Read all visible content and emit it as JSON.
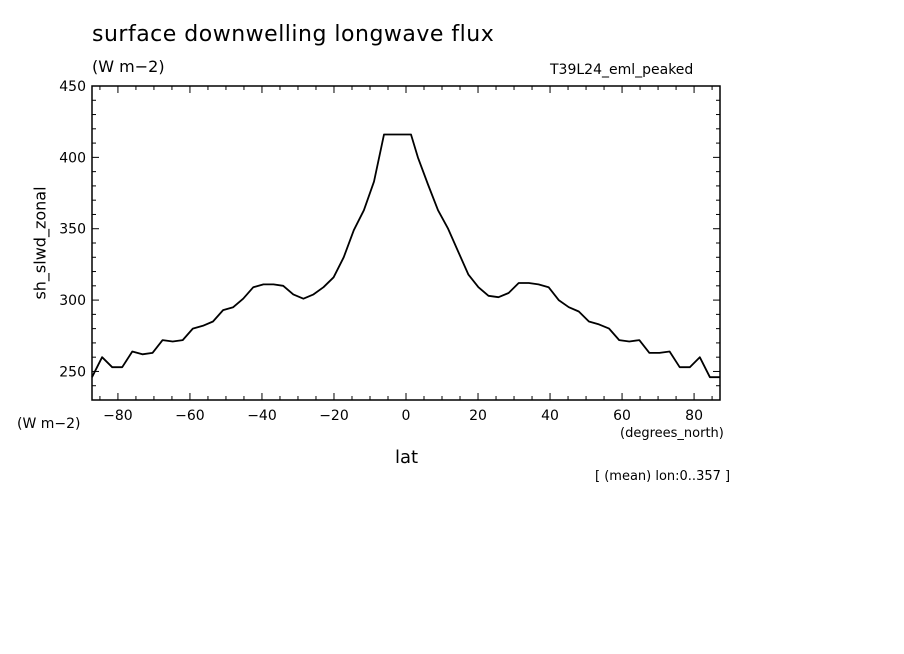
{
  "header": {
    "title": "surface downwelling longwave flux",
    "units": "(W m−2)",
    "run": "T39L24_eml_peaked"
  },
  "axes": {
    "ylabel": "sh_slwd_zonal",
    "yunits": "(W m−2)",
    "xlabel": "lat",
    "xunits": "(degrees_north)"
  },
  "footer": {
    "note": "[ (mean) lon:0..357 ]"
  },
  "chart_data": {
    "type": "line",
    "title": "surface downwelling longwave flux",
    "xlabel": "lat",
    "ylabel": "sh_slwd_zonal",
    "xlim": [
      -87.2,
      87.2
    ],
    "ylim": [
      230,
      450
    ],
    "xticks": [
      -80,
      -60,
      -40,
      -20,
      0,
      20,
      40,
      60,
      80
    ],
    "yticks": [
      250,
      300,
      350,
      400,
      450
    ],
    "grid": false,
    "series": [
      {
        "x": [
          -87.2,
          -84.4,
          -81.6,
          -78.8,
          -76.0,
          -73.2,
          -70.4,
          -67.6,
          -64.8,
          -62.0,
          -59.2,
          -56.4,
          -53.6,
          -50.8,
          -48.0,
          -45.2,
          -42.4,
          -39.6,
          -36.8,
          -34.1,
          -31.3,
          -28.5,
          -25.7,
          -22.9,
          -20.1,
          -17.3,
          -14.5,
          -11.7,
          -8.9,
          -6.1,
          -3.3,
          -0.5,
          0.5,
          1.4,
          3.3,
          6.1,
          8.9,
          11.7,
          14.5,
          17.3,
          20.1,
          22.9,
          25.7,
          28.5,
          31.3,
          34.1,
          36.8,
          39.6,
          42.4,
          45.2,
          48.0,
          50.8,
          53.6,
          56.4,
          59.2,
          62.0,
          64.8,
          67.6,
          70.4,
          73.2,
          76.0,
          78.8,
          81.6,
          84.4,
          87.2
        ],
        "y": [
          246,
          260,
          253,
          253,
          264,
          262,
          263,
          272,
          271,
          272,
          280,
          282,
          285,
          293,
          295,
          301,
          309,
          311,
          311,
          310,
          304,
          301,
          304,
          309,
          316,
          330,
          349,
          363,
          383,
          416,
          416,
          416,
          416,
          416,
          400,
          381,
          363,
          350,
          334,
          318,
          309,
          303,
          302,
          305,
          312,
          312,
          311,
          309,
          300,
          295,
          292,
          285,
          283,
          280,
          272,
          271,
          272,
          263,
          263,
          264,
          253,
          253,
          260,
          246,
          246
        ]
      }
    ]
  }
}
